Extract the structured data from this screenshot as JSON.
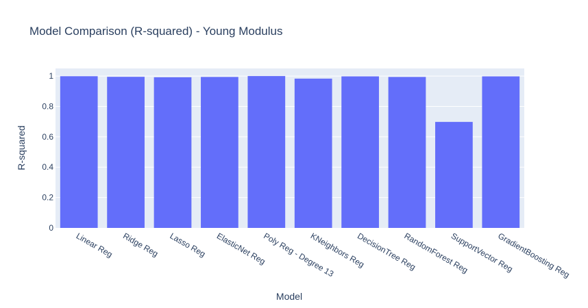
{
  "chart_data": {
    "type": "bar",
    "title": "Model Comparison (R-squared) - Young Modulus",
    "xlabel": "Model",
    "ylabel": "R-squared",
    "categories": [
      "Linear Reg",
      "Ridge Reg",
      "Lasso Reg",
      "ElasticNet Reg",
      "Poly Reg - Degree 13",
      "KNeighbors Reg",
      "DecisionTree Reg",
      "RandomForest Reg",
      "SupportVector Reg",
      "GradientBoosting Reg"
    ],
    "values": [
      0.999,
      0.995,
      0.992,
      0.994,
      1.0,
      0.983,
      0.998,
      0.994,
      0.698,
      0.998
    ],
    "ylim": [
      0,
      1.05
    ],
    "yticks": [
      "0",
      "0.2",
      "0.4",
      "0.6",
      "0.8",
      "1"
    ],
    "grid": true,
    "legend": "none",
    "colors": {
      "bar": "#636efa",
      "plot_bg": "#e5ecf6",
      "grid": "#ffffff",
      "text": "#2a3f5f"
    }
  }
}
